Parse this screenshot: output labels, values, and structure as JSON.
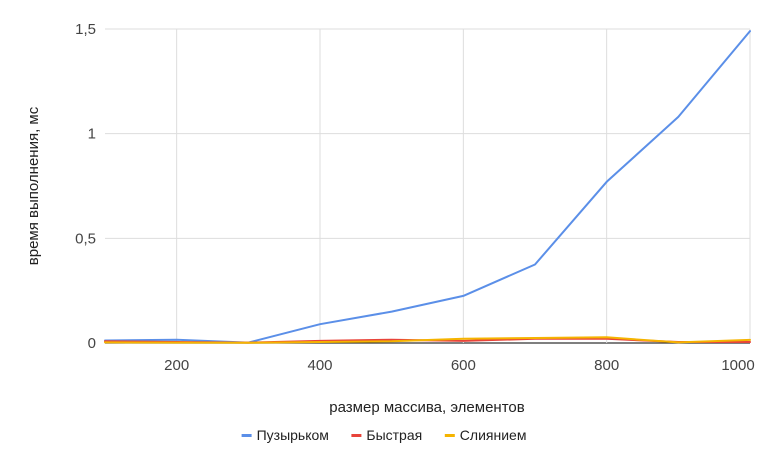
{
  "chart_data": {
    "type": "line",
    "title": "",
    "xlabel": "размер массива, элементов",
    "ylabel": "время выполнения, мс",
    "x": [
      100,
      200,
      300,
      400,
      500,
      600,
      700,
      800,
      900,
      1000
    ],
    "xlim": [
      100,
      1000
    ],
    "ylim": [
      0,
      1.5
    ],
    "xticks": [
      {
        "value": 200,
        "label": "200"
      },
      {
        "value": 400,
        "label": "400"
      },
      {
        "value": 600,
        "label": "600"
      },
      {
        "value": 800,
        "label": "800"
      },
      {
        "value": 1000,
        "label": "1000"
      }
    ],
    "yticks": [
      {
        "value": 0,
        "label": "0"
      },
      {
        "value": 0.5,
        "label": "0,5"
      },
      {
        "value": 1,
        "label": "1"
      },
      {
        "value": 1.5,
        "label": "1,5"
      }
    ],
    "grid": true,
    "legend_position": "bottom",
    "series": [
      {
        "name": "Пузырьком",
        "color": "#5b8fe8",
        "values": [
          0.012,
          0.016,
          0.002,
          0.09,
          0.15,
          0.225,
          0.375,
          0.77,
          1.08,
          1.49
        ]
      },
      {
        "name": "Быстрая",
        "color": "#e8443a",
        "values": [
          0.008,
          0.005,
          0.002,
          0.01,
          0.016,
          0.01,
          0.02,
          0.02,
          0.005,
          0.005
        ]
      },
      {
        "name": "Слиянием",
        "color": "#f5b400",
        "values": [
          0.003,
          0.002,
          0.001,
          0.005,
          0.008,
          0.02,
          0.024,
          0.027,
          0.003,
          0.015
        ]
      }
    ]
  }
}
